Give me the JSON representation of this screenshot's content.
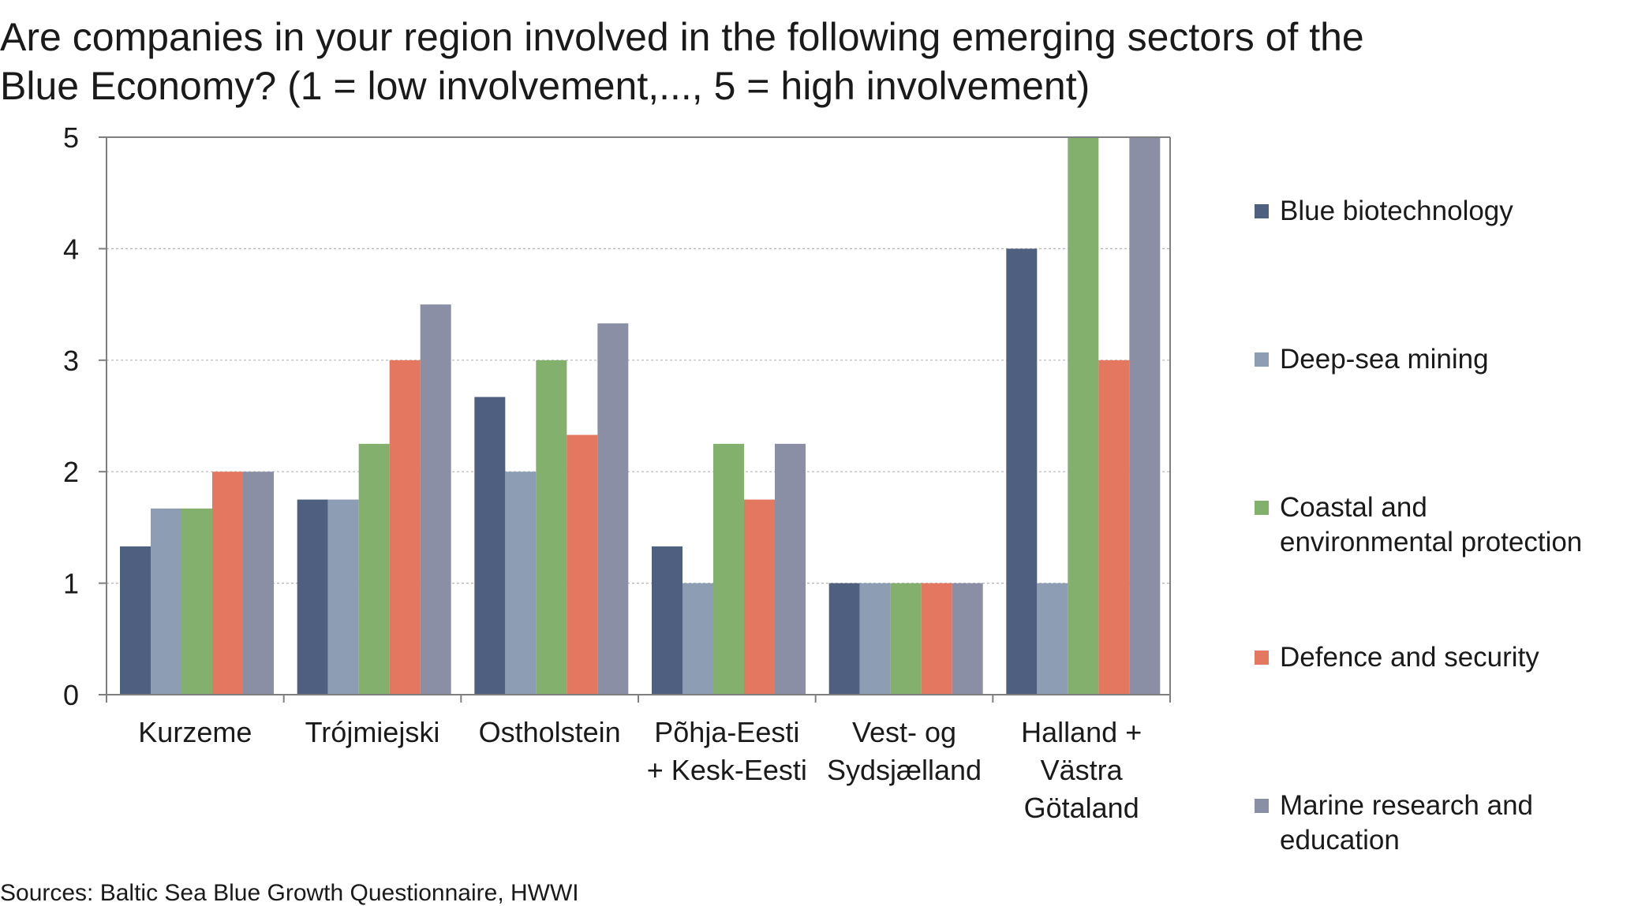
{
  "chart_data": {
    "type": "bar",
    "title_lines": [
      "Are companies in your region involved in the following emerging sectors of the",
      "Blue Economy? (1 = low involvement,..., 5 = high involvement)"
    ],
    "categories": [
      [
        "Kurzeme"
      ],
      [
        "Trójmiejski"
      ],
      [
        "Ostholstein"
      ],
      [
        "Põhja-Eesti",
        "+ Kesk-Eesti"
      ],
      [
        "Vest- og",
        "Sydsjælland"
      ],
      [
        "Halland +",
        "Västra",
        "Götaland"
      ]
    ],
    "series": [
      {
        "name": "Blue biotechnology",
        "name_lines": [
          "Blue biotechnology"
        ],
        "color": "#4f5f80",
        "values": [
          1.33,
          1.75,
          2.67,
          1.33,
          1.0,
          4.0
        ]
      },
      {
        "name": "Deep-sea mining",
        "name_lines": [
          "Deep-sea mining"
        ],
        "color": "#8c9db4",
        "values": [
          1.67,
          1.75,
          2.0,
          1.0,
          1.0,
          1.0
        ]
      },
      {
        "name": "Coastal and environmental protection",
        "name_lines": [
          "Coastal and",
          "environmental protection"
        ],
        "color": "#84b06e",
        "values": [
          1.67,
          2.25,
          3.0,
          2.25,
          1.0,
          5.0
        ]
      },
      {
        "name": "Defence and security",
        "name_lines": [
          "Defence and security"
        ],
        "color": "#e47760",
        "values": [
          2.0,
          3.0,
          2.33,
          1.75,
          1.0,
          3.0
        ]
      },
      {
        "name": "Marine research and education",
        "name_lines": [
          "Marine research and",
          "education"
        ],
        "color": "#8b8fa6",
        "values": [
          2.0,
          3.5,
          3.33,
          2.25,
          1.0,
          5.0
        ]
      }
    ],
    "ylim": [
      0,
      5
    ],
    "yticks": [
      "0",
      "1",
      "2",
      "3",
      "4",
      "5"
    ],
    "xlabel": "",
    "ylabel": "",
    "grid": true,
    "legend_position": "right"
  },
  "source": "Sources: Baltic Sea Blue Growth Questionnaire, HWWI"
}
